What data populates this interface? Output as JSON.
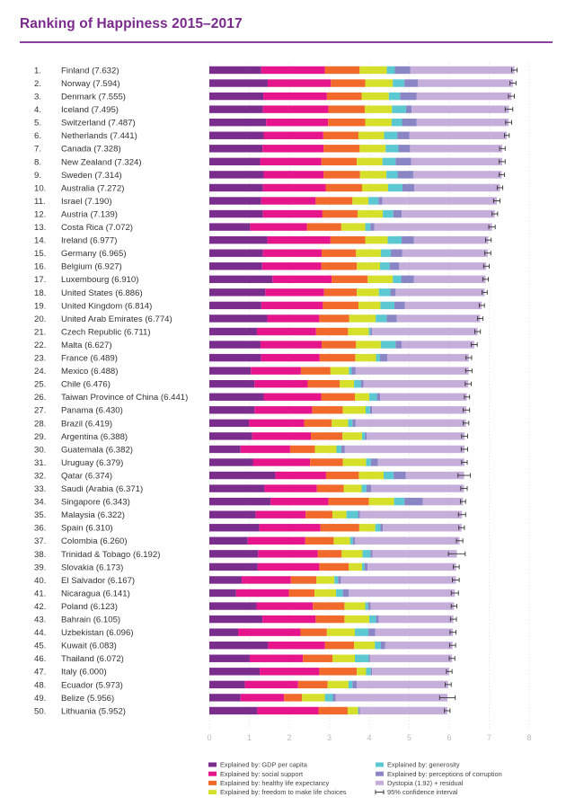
{
  "title": "Ranking of Happiness 2015–2017",
  "colors": {
    "gdp": "#7b2d8e",
    "social": "#e6158c",
    "health": "#f26a2b",
    "freedom": "#d6e02a",
    "generosity": "#5bc8d2",
    "corruption": "#8a86c6",
    "dystopia": "#c6aedb",
    "ci": "#333333",
    "grid": "#dddddd",
    "title": "#7a2a8c"
  },
  "chart_data": {
    "type": "bar",
    "stacked": true,
    "orientation": "horizontal",
    "title": "Ranking of Happiness 2015–2017",
    "xlim": [
      0,
      8
    ],
    "x_ticks": [
      "0",
      "1",
      "2",
      "3",
      "4",
      "5",
      "6",
      "7",
      "8"
    ],
    "series_names": [
      "Explained by: GDP per capita",
      "Explained by: social support",
      "Explained by: healthy life expectancy",
      "Explained by: freedom to make life choices",
      "Explained by: generosity",
      "Explained by: perceptions of corruption",
      "Dystopia (1.92) + residual"
    ],
    "legend": [
      {
        "key": "gdp",
        "label": "Explained by: GDP per capita",
        "type": "bar"
      },
      {
        "key": "generosity",
        "label": "Explained by: generosity",
        "type": "bar"
      },
      {
        "key": "social",
        "label": "Explained by: social support",
        "type": "bar"
      },
      {
        "key": "corruption",
        "label": "Explained by: perceptions of corruption",
        "type": "bar"
      },
      {
        "key": "health",
        "label": "Explained by: healthy life expectancy",
        "type": "bar"
      },
      {
        "key": "dystopia",
        "label": "Dystopia (1.92) + residual",
        "type": "bar"
      },
      {
        "key": "freedom",
        "label": "Explained by: freedom to make life choices",
        "type": "bar"
      },
      {
        "key": "ci",
        "label": "95% confidence interval",
        "type": "ci"
      }
    ],
    "rows": [
      {
        "rank": "1.",
        "label": "Finland (7.632)",
        "score": 7.632,
        "ci": [
          7.56,
          7.7
        ],
        "parts": [
          1.3,
          1.59,
          0.87,
          0.68,
          0.2,
          0.39
        ]
      },
      {
        "rank": "2.",
        "label": "Norway (7.594)",
        "score": 7.594,
        "ci": [
          7.52,
          7.67
        ],
        "parts": [
          1.46,
          1.58,
          0.86,
          0.69,
          0.29,
          0.34
        ]
      },
      {
        "rank": "3.",
        "label": "Denmark (7.555)",
        "score": 7.555,
        "ci": [
          7.48,
          7.63
        ],
        "parts": [
          1.35,
          1.59,
          0.87,
          0.68,
          0.28,
          0.41
        ]
      },
      {
        "rank": "4.",
        "label": "Iceland (7.495)",
        "score": 7.495,
        "ci": [
          7.4,
          7.59
        ],
        "parts": [
          1.34,
          1.64,
          0.91,
          0.68,
          0.35,
          0.14
        ]
      },
      {
        "rank": "5.",
        "label": "Switzerland (7.487)",
        "score": 7.487,
        "ci": [
          7.41,
          7.56
        ],
        "parts": [
          1.42,
          1.55,
          0.93,
          0.66,
          0.26,
          0.36
        ]
      },
      {
        "rank": "6.",
        "label": "Netherlands (7.441)",
        "score": 7.441,
        "ci": [
          7.38,
          7.5
        ],
        "parts": [
          1.36,
          1.49,
          0.88,
          0.64,
          0.33,
          0.3
        ]
      },
      {
        "rank": "7.",
        "label": "Canada (7.328)",
        "score": 7.328,
        "ci": [
          7.26,
          7.4
        ],
        "parts": [
          1.33,
          1.53,
          0.9,
          0.65,
          0.32,
          0.29
        ]
      },
      {
        "rank": "8.",
        "label": "New Zealand (7.324)",
        "score": 7.324,
        "ci": [
          7.25,
          7.4
        ],
        "parts": [
          1.27,
          1.53,
          0.89,
          0.64,
          0.33,
          0.39
        ]
      },
      {
        "rank": "9.",
        "label": "Sweden (7.314)",
        "score": 7.314,
        "ci": [
          7.25,
          7.38
        ],
        "parts": [
          1.36,
          1.5,
          0.91,
          0.66,
          0.28,
          0.39
        ]
      },
      {
        "rank": "10.",
        "label": "Australia (7.272)",
        "score": 7.272,
        "ci": [
          7.2,
          7.34
        ],
        "parts": [
          1.34,
          1.57,
          0.91,
          0.65,
          0.36,
          0.3
        ]
      },
      {
        "rank": "11.",
        "label": "Israel (7.190)",
        "score": 7.19,
        "ci": [
          7.11,
          7.27
        ],
        "parts": [
          1.3,
          1.36,
          0.92,
          0.4,
          0.25,
          0.1
        ]
      },
      {
        "rank": "12.",
        "label": "Austria (7.139)",
        "score": 7.139,
        "ci": [
          7.07,
          7.21
        ],
        "parts": [
          1.34,
          1.49,
          0.88,
          0.63,
          0.26,
          0.21
        ]
      },
      {
        "rank": "13.",
        "label": "Costa Rica (7.072)",
        "score": 7.072,
        "ci": [
          6.99,
          7.15
        ],
        "parts": [
          1.02,
          1.42,
          0.86,
          0.6,
          0.13,
          0.1
        ]
      },
      {
        "rank": "14.",
        "label": "Ireland (6.977)",
        "score": 6.977,
        "ci": [
          6.91,
          7.05
        ],
        "parts": [
          1.45,
          1.58,
          0.87,
          0.56,
          0.35,
          0.31
        ]
      },
      {
        "rank": "15.",
        "label": "Germany (6.965)",
        "score": 6.965,
        "ci": [
          6.89,
          7.04
        ],
        "parts": [
          1.34,
          1.47,
          0.86,
          0.62,
          0.25,
          0.28
        ]
      },
      {
        "rank": "16.",
        "label": "Belgium (6.927)",
        "score": 6.927,
        "ci": [
          6.86,
          7.0
        ],
        "parts": [
          1.32,
          1.48,
          0.89,
          0.58,
          0.24,
          0.24
        ]
      },
      {
        "rank": "17.",
        "label": "Luxembourg (6.910)",
        "score": 6.91,
        "ci": [
          6.84,
          6.98
        ],
        "parts": [
          1.58,
          1.48,
          0.9,
          0.63,
          0.21,
          0.32
        ]
      },
      {
        "rank": "18.",
        "label": "United States (6.886)",
        "score": 6.886,
        "ci": [
          6.82,
          6.95
        ],
        "parts": [
          1.4,
          1.47,
          0.82,
          0.55,
          0.29,
          0.13
        ]
      },
      {
        "rank": "19.",
        "label": "United Kingdom (6.814)",
        "score": 6.814,
        "ci": [
          6.75,
          6.88
        ],
        "parts": [
          1.3,
          1.54,
          0.89,
          0.55,
          0.35,
          0.26
        ]
      },
      {
        "rank": "20.",
        "label": "United Arab Emirates (6.774)",
        "score": 6.774,
        "ci": [
          6.71,
          6.84
        ],
        "parts": [
          1.45,
          1.3,
          0.75,
          0.66,
          0.28,
          0.25
        ]
      },
      {
        "rank": "21.",
        "label": "Czech Republic (6.711)",
        "score": 6.711,
        "ci": [
          6.64,
          6.78
        ],
        "parts": [
          1.19,
          1.48,
          0.8,
          0.52,
          0.04,
          0.04
        ]
      },
      {
        "rank": "22.",
        "label": "Malta (6.627)",
        "score": 6.627,
        "ci": [
          6.55,
          6.7
        ],
        "parts": [
          1.28,
          1.53,
          0.86,
          0.62,
          0.37,
          0.15
        ]
      },
      {
        "rank": "23.",
        "label": "France (6.489)",
        "score": 6.489,
        "ci": [
          6.42,
          6.56
        ],
        "parts": [
          1.29,
          1.47,
          0.89,
          0.52,
          0.1,
          0.18
        ]
      },
      {
        "rank": "24.",
        "label": "Mexico (6.488)",
        "score": 6.488,
        "ci": [
          6.41,
          6.57
        ],
        "parts": [
          1.04,
          1.25,
          0.74,
          0.46,
          0.07,
          0.1
        ]
      },
      {
        "rank": "25.",
        "label": "Chile (6.476)",
        "score": 6.476,
        "ci": [
          6.4,
          6.55
        ],
        "parts": [
          1.13,
          1.33,
          0.8,
          0.36,
          0.17,
          0.07
        ]
      },
      {
        "rank": "26.",
        "label": "Taiwan Province of China (6.441)",
        "score": 6.441,
        "ci": [
          6.38,
          6.51
        ],
        "parts": [
          1.36,
          1.44,
          0.84,
          0.36,
          0.19,
          0.08
        ]
      },
      {
        "rank": "27.",
        "label": "Panama (6.430)",
        "score": 6.43,
        "ci": [
          6.35,
          6.51
        ],
        "parts": [
          1.13,
          1.44,
          0.77,
          0.57,
          0.11,
          0.05
        ]
      },
      {
        "rank": "28.",
        "label": "Brazil (6.419)",
        "score": 6.419,
        "ci": [
          6.35,
          6.49
        ],
        "parts": [
          0.99,
          1.38,
          0.69,
          0.41,
          0.11,
          0.08
        ]
      },
      {
        "rank": "29.",
        "label": "Argentina (6.388)",
        "score": 6.388,
        "ci": [
          6.31,
          6.46
        ],
        "parts": [
          1.07,
          1.47,
          0.79,
          0.49,
          0.07,
          0.05
        ]
      },
      {
        "rank": "30.",
        "label": "Guatemala (6.382)",
        "score": 6.382,
        "ci": [
          6.3,
          6.46
        ],
        "parts": [
          0.78,
          1.24,
          0.62,
          0.54,
          0.12,
          0.09
        ]
      },
      {
        "rank": "31.",
        "label": "Uruguay (6.379)",
        "score": 6.379,
        "ci": [
          6.31,
          6.45
        ],
        "parts": [
          1.09,
          1.43,
          0.82,
          0.58,
          0.12,
          0.18
        ]
      },
      {
        "rank": "32.",
        "label": "Qatar (6.374)",
        "score": 6.374,
        "ci": [
          6.22,
          6.53
        ],
        "parts": [
          1.65,
          1.27,
          0.82,
          0.62,
          0.25,
          0.3
        ]
      },
      {
        "rank": "33.",
        "label": "Saudi (Arabia (6.371)",
        "score": 6.371,
        "ci": [
          6.29,
          6.45
        ],
        "parts": [
          1.38,
          1.31,
          0.67,
          0.45,
          0.12,
          0.12
        ]
      },
      {
        "rank": "34.",
        "label": "Singapore (6.343)",
        "score": 6.343,
        "ci": [
          6.28,
          6.41
        ],
        "parts": [
          1.53,
          1.45,
          1.01,
          0.63,
          0.26,
          0.46
        ]
      },
      {
        "rank": "35.",
        "label": "Malaysia (6.322)",
        "score": 6.322,
        "ci": [
          6.23,
          6.41
        ],
        "parts": [
          1.16,
          1.25,
          0.67,
          0.35,
          0.29,
          0.05
        ]
      },
      {
        "rank": "36.",
        "label": "Spain (6.310)",
        "score": 6.31,
        "ci": [
          6.24,
          6.38
        ],
        "parts": [
          1.25,
          1.53,
          0.97,
          0.4,
          0.13,
          0.06
        ]
      },
      {
        "rank": "37.",
        "label": "Colombia (6.260)",
        "score": 6.26,
        "ci": [
          6.18,
          6.34
        ],
        "parts": [
          0.96,
          1.44,
          0.71,
          0.41,
          0.07,
          0.05
        ]
      },
      {
        "rank": "38.",
        "label": "Trinidad & Tobago (6.192)",
        "score": 6.192,
        "ci": [
          5.98,
          6.4
        ],
        "parts": [
          1.22,
          1.49,
          0.6,
          0.52,
          0.2,
          0.05
        ]
      },
      {
        "rank": "39.",
        "label": "Slovakia (6.173)",
        "score": 6.173,
        "ci": [
          6.1,
          6.25
        ],
        "parts": [
          1.21,
          1.54,
          0.74,
          0.33,
          0.06,
          0.08
        ]
      },
      {
        "rank": "40.",
        "label": "El Salvador (6.167)",
        "score": 6.167,
        "ci": [
          6.08,
          6.25
        ],
        "parts": [
          0.81,
          1.23,
          0.64,
          0.45,
          0.09,
          0.07
        ]
      },
      {
        "rank": "41.",
        "label": "Nicaragua (6.141)",
        "score": 6.141,
        "ci": [
          6.05,
          6.23
        ],
        "parts": [
          0.67,
          1.32,
          0.64,
          0.54,
          0.17,
          0.15
        ]
      },
      {
        "rank": "42.",
        "label": "Poland (6.123)",
        "score": 6.123,
        "ci": [
          6.05,
          6.19
        ],
        "parts": [
          1.18,
          1.41,
          0.79,
          0.52,
          0.07,
          0.07
        ]
      },
      {
        "rank": "43.",
        "label": "Bahrain (6.105)",
        "score": 6.105,
        "ci": [
          6.03,
          6.18
        ],
        "parts": [
          1.33,
          1.33,
          0.72,
          0.62,
          0.17,
          0.07
        ]
      },
      {
        "rank": "44.",
        "label": "Uzbekistan (6.096)",
        "score": 6.096,
        "ci": [
          6.02,
          6.17
        ],
        "parts": [
          0.72,
          1.56,
          0.66,
          0.7,
          0.34,
          0.17
        ]
      },
      {
        "rank": "45.",
        "label": "Kuwait (6.083)",
        "score": 6.083,
        "ci": [
          6.01,
          6.16
        ],
        "parts": [
          1.47,
          1.42,
          0.73,
          0.52,
          0.15,
          0.11
        ]
      },
      {
        "rank": "46.",
        "label": "Thailand (6.072)",
        "score": 6.072,
        "ci": [
          6.0,
          6.14
        ],
        "parts": [
          1.01,
          1.33,
          0.74,
          0.56,
          0.35,
          0.03
        ]
      },
      {
        "rank": "47.",
        "label": "Italy (6.000)",
        "score": 6.0,
        "ci": [
          5.93,
          6.07
        ],
        "parts": [
          1.26,
          1.49,
          0.94,
          0.23,
          0.12,
          0.03
        ]
      },
      {
        "rank": "48.",
        "label": "Ecuador (5.973)",
        "score": 5.973,
        "ci": [
          5.9,
          6.05
        ],
        "parts": [
          0.89,
          1.33,
          0.74,
          0.52,
          0.1,
          0.11
        ]
      },
      {
        "rank": "49.",
        "label": "Belize (5.956)",
        "score": 5.956,
        "ci": [
          5.76,
          6.15
        ],
        "parts": [
          0.78,
          1.09,
          0.45,
          0.57,
          0.2,
          0.07
        ]
      },
      {
        "rank": "50.",
        "label": "Lithuania (5.952)",
        "score": 5.952,
        "ci": [
          5.88,
          6.02
        ],
        "parts": [
          1.2,
          1.53,
          0.73,
          0.26,
          0.02,
          0.03
        ]
      }
    ]
  }
}
